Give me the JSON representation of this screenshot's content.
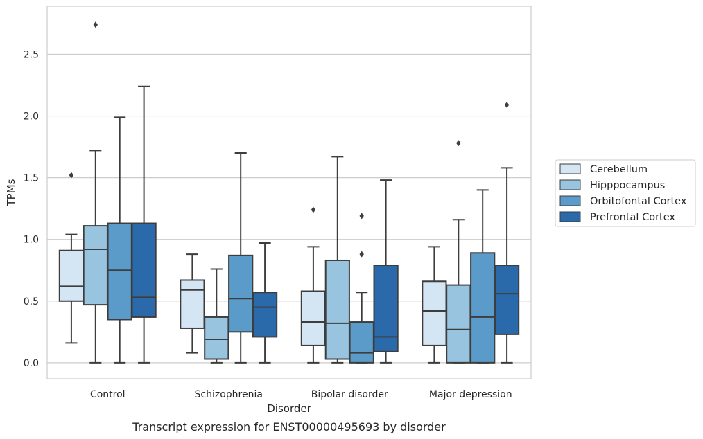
{
  "caption": "Transcript expression for ENST00000495693 by disorder",
  "chart_data": {
    "type": "box",
    "title": "",
    "xlabel": "Disorder",
    "ylabel": "TPMs",
    "ylim": [
      -0.13,
      2.89
    ],
    "yticks": [
      0.0,
      0.5,
      1.0,
      1.5,
      2.0,
      2.5
    ],
    "ytick_labels": [
      "0.0",
      "0.5",
      "1.0",
      "1.5",
      "2.0",
      "2.5"
    ],
    "grid": "horizontal",
    "legend_position": "right",
    "categories": [
      "Control",
      "Schizophrenia",
      "Bipolar disorder",
      "Major depression"
    ],
    "series": [
      {
        "name": "Cerebellum",
        "color": "#d4e5f4",
        "boxes": [
          {
            "whislo": 0.16,
            "q1": 0.5,
            "med": 0.62,
            "q3": 0.91,
            "whishi": 1.04,
            "fliers": [
              1.52
            ]
          },
          {
            "whislo": 0.08,
            "q1": 0.28,
            "med": 0.59,
            "q3": 0.67,
            "whishi": 0.88,
            "fliers": []
          },
          {
            "whislo": 0.0,
            "q1": 0.14,
            "med": 0.33,
            "q3": 0.58,
            "whishi": 0.94,
            "fliers": [
              1.24
            ]
          },
          {
            "whislo": 0.0,
            "q1": 0.14,
            "med": 0.42,
            "q3": 0.66,
            "whishi": 0.94,
            "fliers": []
          }
        ]
      },
      {
        "name": "Hipppocampus",
        "color": "#99c4e0",
        "boxes": [
          {
            "whislo": 0.0,
            "q1": 0.47,
            "med": 0.92,
            "q3": 1.11,
            "whishi": 1.72,
            "fliers": [
              2.74
            ]
          },
          {
            "whislo": 0.0,
            "q1": 0.03,
            "med": 0.19,
            "q3": 0.37,
            "whishi": 0.76,
            "fliers": []
          },
          {
            "whislo": 0.0,
            "q1": 0.03,
            "med": 0.32,
            "q3": 0.83,
            "whishi": 1.67,
            "fliers": []
          },
          {
            "whislo": 0.0,
            "q1": 0.0,
            "med": 0.27,
            "q3": 0.63,
            "whishi": 1.16,
            "fliers": [
              1.78
            ]
          }
        ]
      },
      {
        "name": "Orbitofontal Cortex",
        "color": "#5b9bc9",
        "boxes": [
          {
            "whislo": 0.0,
            "q1": 0.35,
            "med": 0.75,
            "q3": 1.13,
            "whishi": 1.99,
            "fliers": []
          },
          {
            "whislo": 0.0,
            "q1": 0.25,
            "med": 0.52,
            "q3": 0.87,
            "whishi": 1.7,
            "fliers": []
          },
          {
            "whislo": 0.0,
            "q1": 0.0,
            "med": 0.08,
            "q3": 0.33,
            "whishi": 0.57,
            "fliers": [
              0.88,
              1.19
            ]
          },
          {
            "whislo": 0.0,
            "q1": 0.0,
            "med": 0.37,
            "q3": 0.89,
            "whishi": 1.4,
            "fliers": []
          }
        ]
      },
      {
        "name": "Prefrontal Cortex",
        "color": "#2a6aab",
        "boxes": [
          {
            "whislo": 0.0,
            "q1": 0.37,
            "med": 0.53,
            "q3": 1.13,
            "whishi": 2.24,
            "fliers": []
          },
          {
            "whislo": 0.0,
            "q1": 0.21,
            "med": 0.45,
            "q3": 0.57,
            "whishi": 0.97,
            "fliers": []
          },
          {
            "whislo": 0.0,
            "q1": 0.09,
            "med": 0.21,
            "q3": 0.79,
            "whishi": 1.48,
            "fliers": []
          },
          {
            "whislo": 0.0,
            "q1": 0.23,
            "med": 0.56,
            "q3": 0.79,
            "whishi": 1.58,
            "fliers": [
              2.09
            ]
          }
        ]
      }
    ],
    "line_color": "#3d3d3d",
    "grid_color": "#cccccc",
    "frame_color": "#cccccc"
  }
}
